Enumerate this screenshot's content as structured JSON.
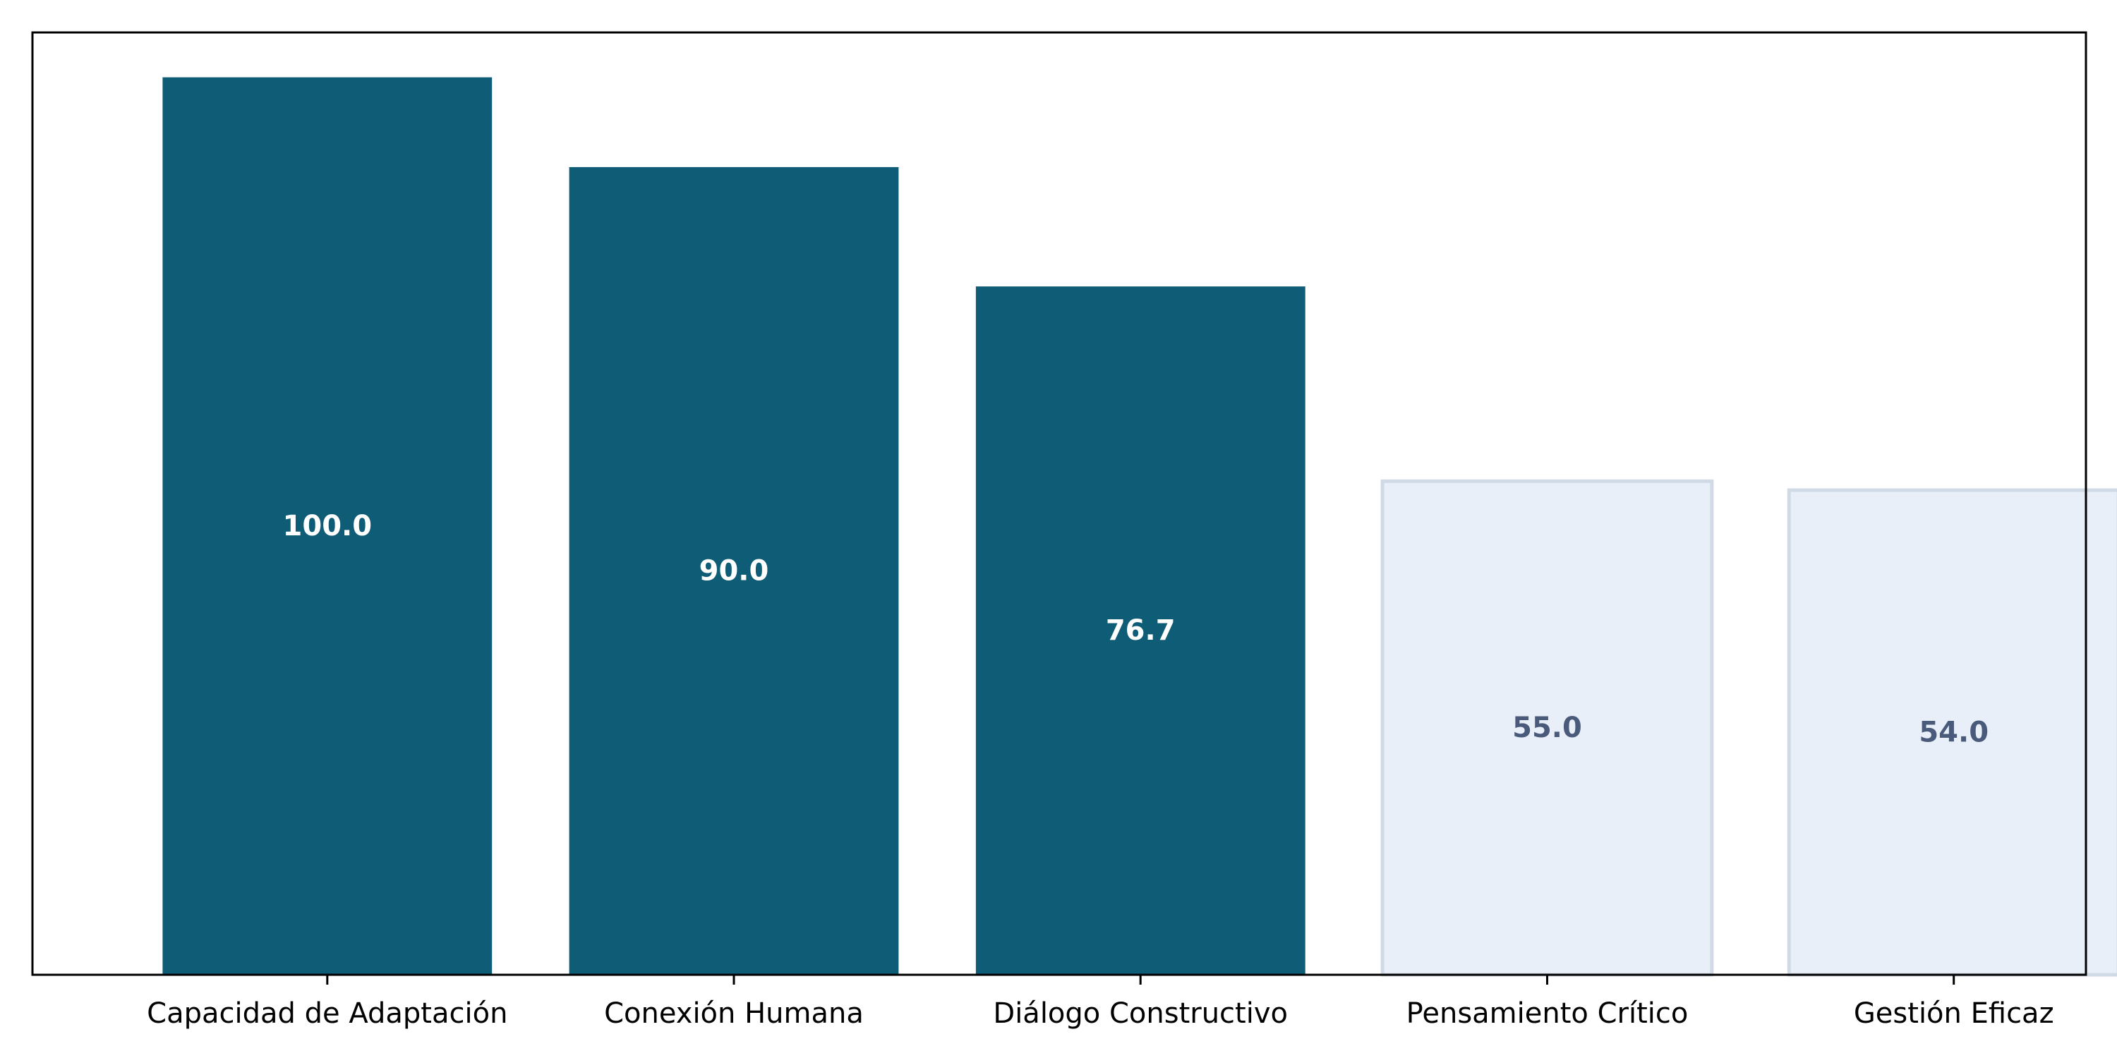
{
  "chart_data": {
    "type": "bar",
    "title": "",
    "xlabel": "",
    "ylabel": "",
    "categories": [
      "Capacidad de Adaptación",
      "Conexión Humana",
      "Diálogo Constructivo",
      "Pensamiento Crítico",
      "Gestión Eficaz"
    ],
    "values": [
      100.0,
      90.0,
      76.7,
      55.0,
      54.0
    ],
    "value_labels": [
      "100.0",
      "90.0",
      "76.7",
      "55.0",
      "54.0"
    ],
    "ylim": [
      0,
      105
    ],
    "grid": false,
    "y_ticks_visible": false,
    "highlight_count": 3,
    "colors": {
      "highlight_fill": "#0e5c76",
      "highlight_label": "#ffffff",
      "muted_fill": "#e8eff8",
      "muted_edge": "#d0dae6",
      "muted_label": "#4a5a7a",
      "axis": "#000000"
    }
  }
}
